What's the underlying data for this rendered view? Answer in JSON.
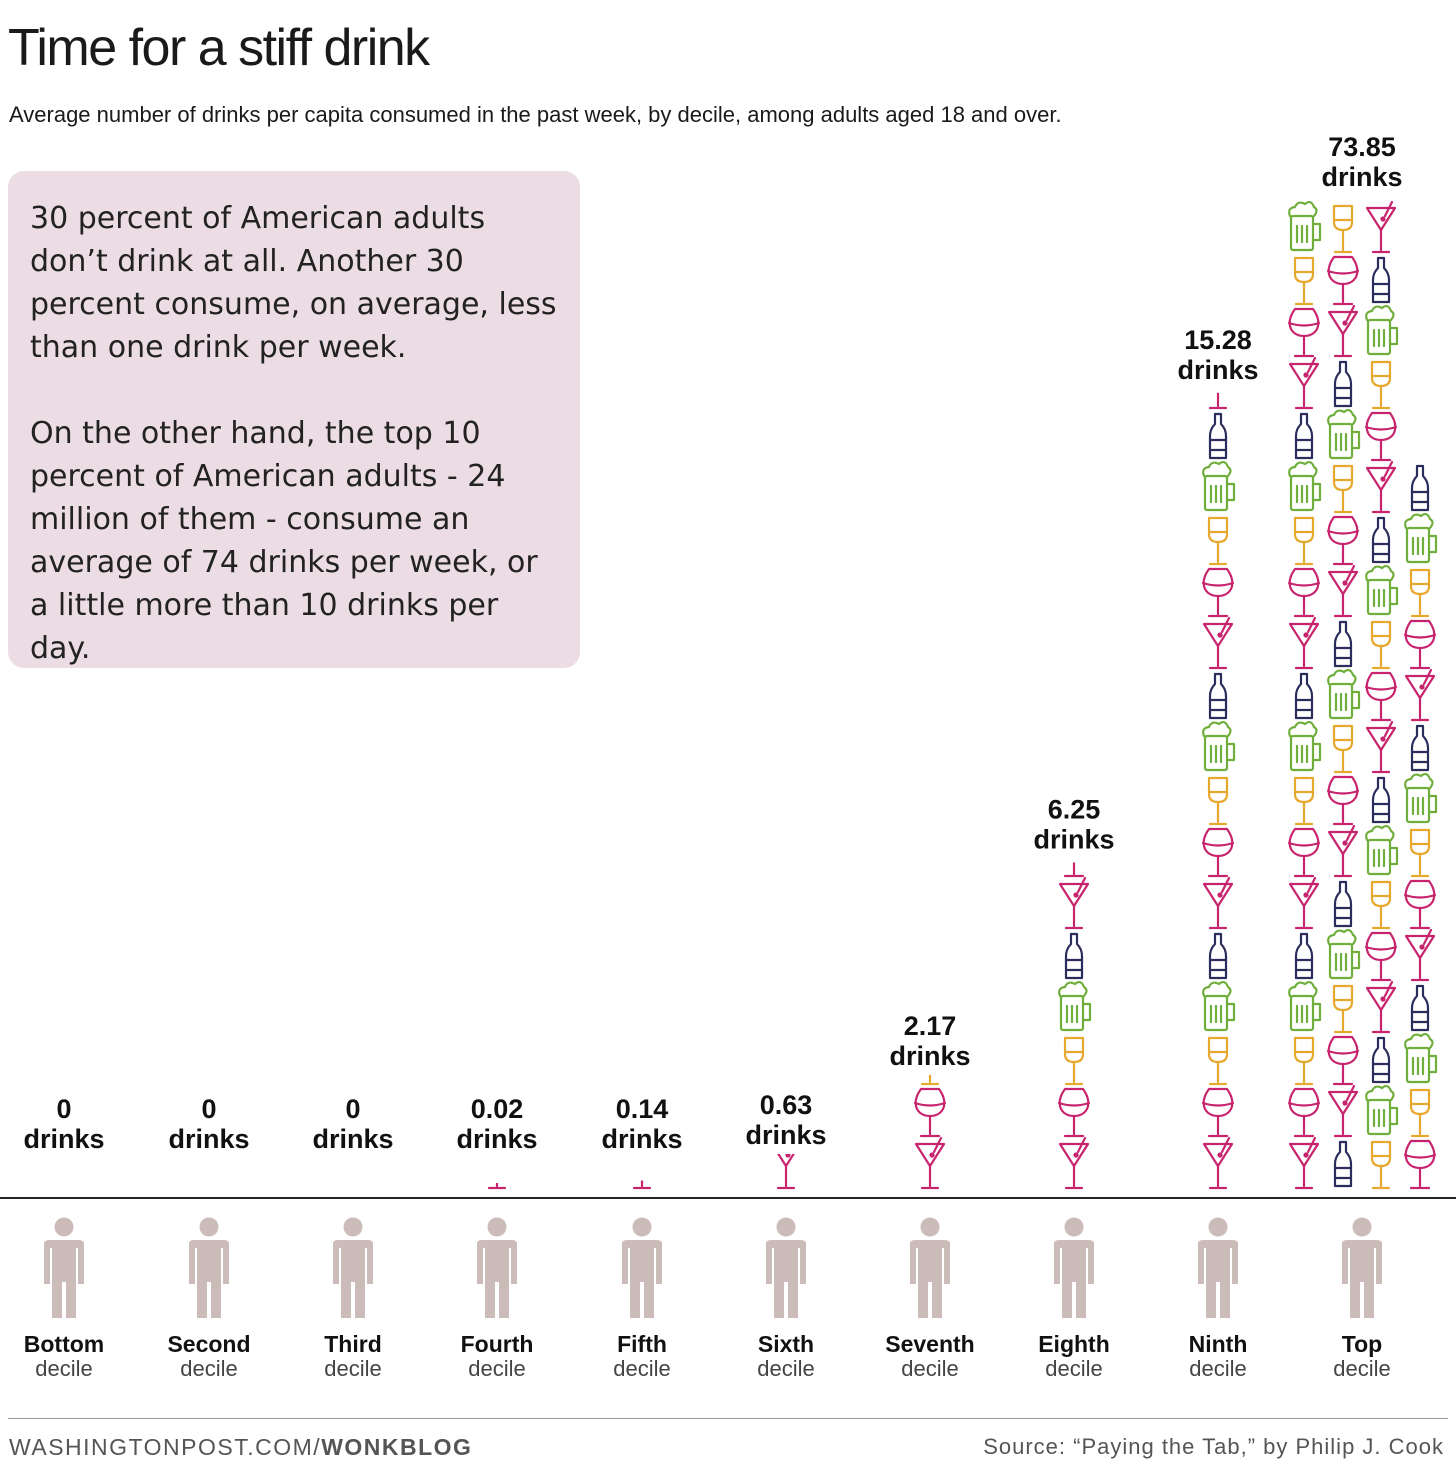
{
  "title": "Time for a stiff drink",
  "subtitle": "Average number of drinks per capita consumed in the past week, by decile, among adults aged 18 and over.",
  "callout": {
    "paragraph1": "30 percent of American adults don’t drink at all. Another 30 percent consume, on average, less than one drink per week.",
    "paragraph2": "On the other hand, the top 10 percent of American adults - 24 million of them - consume an average of 74 drinks per week, or a little more than 10 drinks per day."
  },
  "footer": {
    "site": "WASHINGTONPOST.COM/",
    "brand": "WONKBLOG",
    "source": "Source: “Paying the Tab,” by Philip J. Cook"
  },
  "colors": {
    "martini": "#c8246e",
    "wine": "#c8246e",
    "beer_bottle": "#2b2d5c",
    "beer_mug": "#6fae3a",
    "white_wine": "#e6a92e",
    "person": "#cbbcb9",
    "baseline": "#222222"
  },
  "icons": [
    "martini-glass-icon",
    "beer-bottle-icon",
    "beer-mug-icon",
    "white-wine-glass-icon",
    "red-wine-glass-icon",
    "person-icon"
  ],
  "chart_data": {
    "type": "bar",
    "unit_label": "drinks",
    "decile_suffix": "decile",
    "categories": [
      "Bottom",
      "Second",
      "Third",
      "Fourth",
      "Fifth",
      "Sixth",
      "Seventh",
      "Eighth",
      "Ninth",
      "Top"
    ],
    "values": [
      0,
      0,
      0,
      0.02,
      0.14,
      0.63,
      2.17,
      6.25,
      15.28,
      73.85
    ],
    "value_labels": [
      "0",
      "0",
      "0",
      "0.02",
      "0.14",
      "0.63",
      "2.17",
      "6.25",
      "15.28",
      "73.85"
    ]
  }
}
